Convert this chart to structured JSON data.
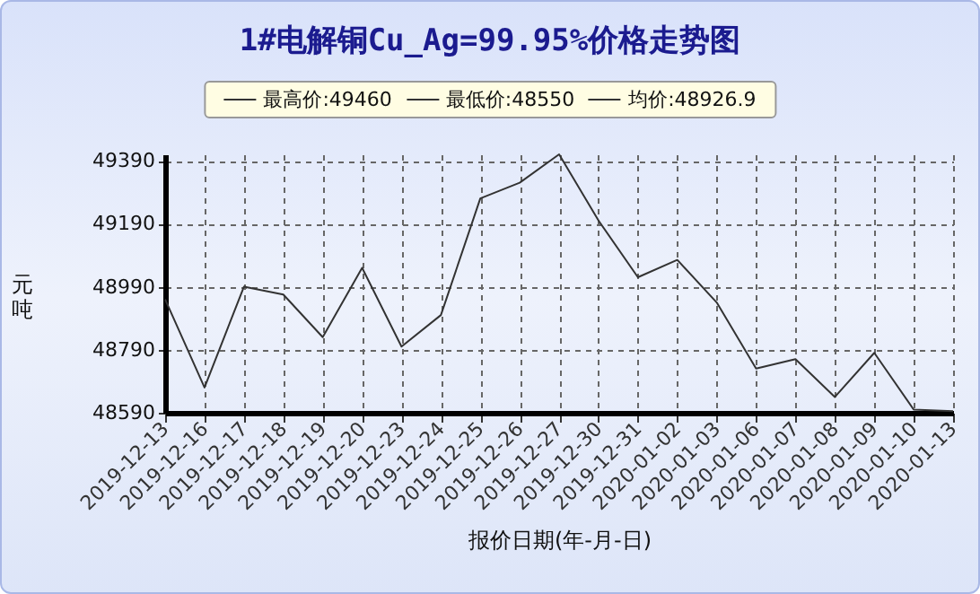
{
  "chart_data": {
    "type": "line",
    "title": "1#电解铜Cu_Ag=99.95%价格走势图",
    "xlabel": "报价日期(年-月-日)",
    "ylabel": "元吨",
    "annotations": [
      "最高价:49460",
      "最低价:48550",
      "均价:48926.9"
    ],
    "categories": [
      "2019-12-13",
      "2019-12-16",
      "2019-12-17",
      "2019-12-18",
      "2019-12-19",
      "2019-12-20",
      "2019-12-23",
      "2019-12-24",
      "2019-12-25",
      "2019-12-26",
      "2019-12-27",
      "2019-12-30",
      "2019-12-31",
      "2020-01-02",
      "2020-01-03",
      "2020-01-06",
      "2020-01-07",
      "2020-01-08",
      "2020-01-09",
      "2020-01-10",
      "2020-01-13"
    ],
    "series": [
      {
        "color": "#333333",
        "values": [
          48950,
          48670,
          48990,
          48965,
          48830,
          49050,
          48800,
          48900,
          49270,
          49320,
          49410,
          49200,
          49020,
          49075,
          48940,
          48730,
          48760,
          48640,
          48780,
          48600,
          48595
        ]
      }
    ],
    "ylim": [
      48590,
      49410
    ],
    "yticks": [
      48590,
      48790,
      48990,
      49190,
      49390
    ],
    "grid": true,
    "marker": "none",
    "line_style": "solid"
  }
}
